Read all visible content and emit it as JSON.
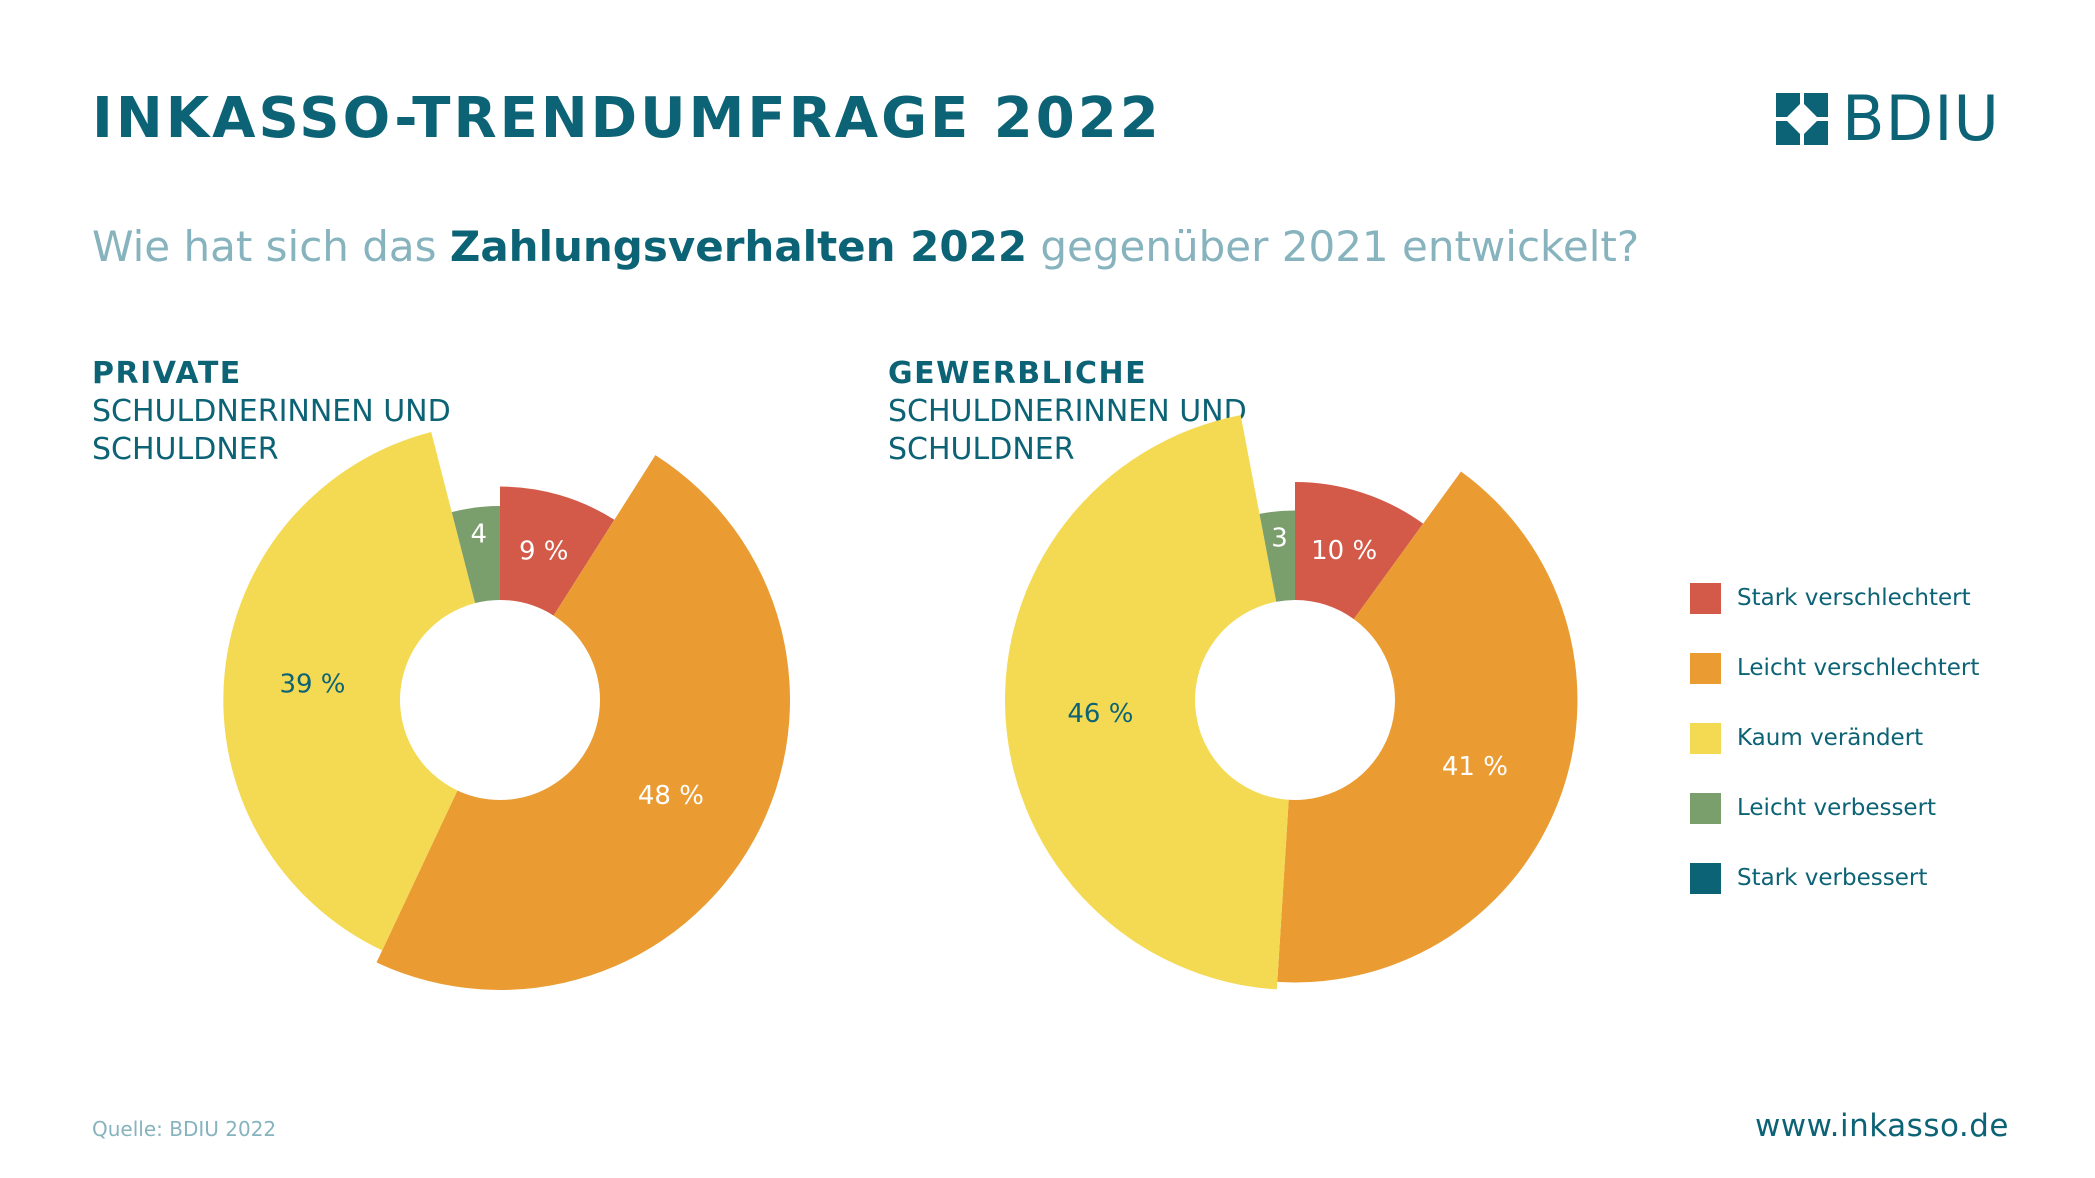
{
  "header": {
    "title": "INKASSO-TRENDUMFRAGE 2022",
    "logo_text": "BDIU"
  },
  "question": {
    "part1": "Wie hat sich das ",
    "bold": "Zahlungsverhalten 2022",
    "part2": " gegenüber 2021 entwickelt?"
  },
  "colors": {
    "stark_verschlechtert": "#d35a48",
    "leicht_verschlechtert": "#ea9c33",
    "kaum_veraendert": "#f3da52",
    "leicht_verbessert": "#7a9e6c",
    "stark_verbessert": "#0c6375",
    "text_dark": "#0c6375",
    "text_light": "#86b3bd"
  },
  "legend": [
    {
      "label": "Stark verschlechtert",
      "color": "#d35a48"
    },
    {
      "label": "Leicht verschlechtert",
      "color": "#ea9c33"
    },
    {
      "label": "Kaum verändert",
      "color": "#f3da52"
    },
    {
      "label": "Leicht verbessert",
      "color": "#7a9e6c"
    },
    {
      "label": "Stark verbessert",
      "color": "#0c6375"
    }
  ],
  "chart_data": [
    {
      "type": "pie",
      "title_bold": "PRIVATE",
      "title_line2": "SCHULDNERINNEN UND",
      "title_line3": "SCHULDNER",
      "categories": [
        "Stark verschlechtert",
        "Leicht verschlechtert",
        "Kaum verändert",
        "Leicht verbessert",
        "Stark verbessert"
      ],
      "values": [
        9,
        48,
        39,
        4,
        0
      ],
      "labels": [
        "9 %",
        "48 %",
        "39 %",
        "4",
        ""
      ]
    },
    {
      "type": "pie",
      "title_bold": "GEWERBLICHE",
      "title_line2": "SCHULDNERINNEN UND",
      "title_line3": "SCHULDNER",
      "categories": [
        "Stark verschlechtert",
        "Leicht verschlechtert",
        "Kaum verändert",
        "Leicht verbessert",
        "Stark verbessert"
      ],
      "values": [
        10,
        41,
        46,
        3,
        0
      ],
      "labels": [
        "10 %",
        "41 %",
        "46 %",
        "3",
        ""
      ]
    }
  ],
  "footer": {
    "source": "Quelle: BDIU 2022",
    "url": "www.inkasso.de"
  }
}
